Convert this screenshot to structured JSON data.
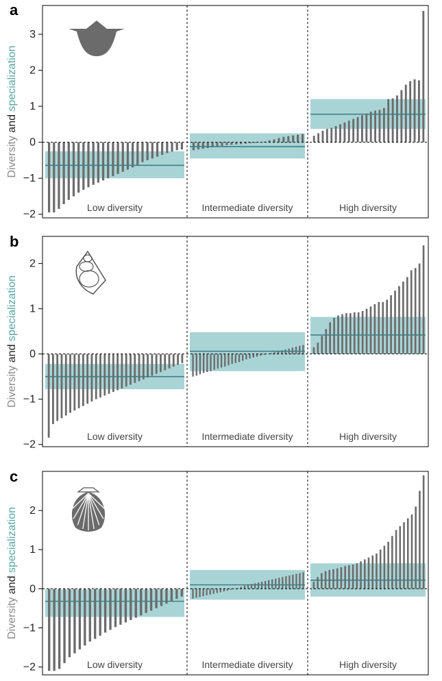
{
  "colors": {
    "bar": "#6b6b6b",
    "band": "#a9d4d6",
    "median": "#3f7f83",
    "axis": "#000000",
    "ylabel_diversity": "#8a8a8a",
    "ylabel_specialization": "#5aa3a5"
  },
  "ylabel": {
    "part1": "Diversity",
    "part2": " and ",
    "part3": "specialization"
  },
  "chart_data": [
    {
      "type": "bar",
      "panel": "a",
      "icon": "brachiopod-shell-icon",
      "ylim": [
        -2.1,
        3.8
      ],
      "yticks": [
        -2,
        -1,
        0,
        1,
        2,
        3
      ],
      "ytick_labels": [
        "−2",
        "−1",
        "0",
        "1",
        "2",
        "3"
      ],
      "groups": [
        {
          "label": "Low diversity",
          "values": [
            -1.95,
            -1.95,
            -1.85,
            -1.72,
            -1.6,
            -1.5,
            -1.4,
            -1.32,
            -1.25,
            -1.18,
            -1.12,
            -1.06,
            -1.0,
            -0.94,
            -0.88,
            -0.82,
            -0.76,
            -0.7,
            -0.63,
            -0.55,
            -0.5,
            -0.45,
            -0.4,
            -0.35,
            -0.3,
            -0.26,
            -0.22,
            -0.2
          ],
          "band": [
            -1.0,
            -0.25
          ],
          "median": -0.64
        },
        {
          "label": "Intermediate diversity",
          "values": [
            -0.22,
            -0.2,
            -0.18,
            -0.16,
            -0.14,
            -0.12,
            -0.1,
            -0.08,
            -0.07,
            -0.06,
            -0.05,
            -0.04,
            -0.03,
            -0.02,
            -0.01,
            0.02,
            0.05,
            0.08,
            0.12,
            0.15,
            0.17,
            0.19,
            0.21,
            0.23
          ],
          "band": [
            -0.45,
            0.25
          ],
          "median": -0.12
        },
        {
          "label": "High diversity",
          "values": [
            0.18,
            0.25,
            0.32,
            0.37,
            0.4,
            0.45,
            0.5,
            0.55,
            0.6,
            0.65,
            0.7,
            0.75,
            0.8,
            0.85,
            0.88,
            0.9,
            0.95,
            1.2,
            1.22,
            1.3,
            1.45,
            1.6,
            1.7,
            1.75,
            1.72,
            3.65
          ],
          "band": [
            0.37,
            1.2
          ],
          "median": 0.78
        }
      ]
    },
    {
      "type": "bar",
      "panel": "b",
      "icon": "gastropod-shell-icon",
      "ylim": [
        -2.05,
        2.6
      ],
      "yticks": [
        -2,
        -1,
        0,
        1,
        2
      ],
      "ytick_labels": [
        "−2",
        "−1",
        "0",
        "1",
        "2"
      ],
      "groups": [
        {
          "label": "Low diversity",
          "values": [
            -1.85,
            -1.55,
            -1.48,
            -1.42,
            -1.36,
            -1.3,
            -1.25,
            -1.2,
            -1.15,
            -1.1,
            -1.05,
            -1.0,
            -0.96,
            -0.92,
            -0.88,
            -0.84,
            -0.8,
            -0.76,
            -0.72,
            -0.68,
            -0.64,
            -0.6,
            -0.56,
            -0.52,
            -0.48,
            -0.44,
            -0.4,
            -0.36,
            -0.32,
            -0.28,
            -0.24,
            -0.2
          ],
          "band": [
            -0.78,
            -0.22
          ],
          "median": -0.5
        },
        {
          "label": "Intermediate diversity",
          "values": [
            -0.5,
            -0.48,
            -0.45,
            -0.42,
            -0.4,
            -0.38,
            -0.35,
            -0.32,
            -0.3,
            -0.28,
            -0.25,
            -0.22,
            -0.2,
            -0.18,
            -0.15,
            -0.12,
            -0.1,
            -0.08,
            -0.06,
            -0.04,
            -0.02,
            0.0,
            0.02,
            0.04,
            0.06,
            0.08,
            0.1,
            0.12,
            0.14,
            0.16,
            0.18,
            0.2
          ],
          "band": [
            -0.38,
            0.48
          ],
          "median": 0.06
        },
        {
          "label": "High diversity",
          "values": [
            0.15,
            0.25,
            0.4,
            0.55,
            0.7,
            0.8,
            0.85,
            0.88,
            0.9,
            0.9,
            0.92,
            0.92,
            0.95,
            1.0,
            1.05,
            1.1,
            1.15,
            1.15,
            1.2,
            1.3,
            1.4,
            1.5,
            1.6,
            1.7,
            1.85,
            1.9,
            2.0,
            2.4
          ],
          "band": [
            0.0,
            0.82
          ],
          "median": 0.42
        }
      ]
    },
    {
      "type": "bar",
      "panel": "c",
      "icon": "scallop-shell-icon",
      "ylim": [
        -2.2,
        3.0
      ],
      "yticks": [
        -2,
        -1,
        0,
        1,
        2
      ],
      "ytick_labels": [
        "−2",
        "−1",
        "0",
        "1",
        "2"
      ],
      "groups": [
        {
          "label": "Low diversity",
          "values": [
            -2.1,
            -2.1,
            -2.05,
            -1.9,
            -1.75,
            -1.65,
            -1.55,
            -1.45,
            -1.35,
            -1.28,
            -1.2,
            -1.12,
            -1.05,
            -0.98,
            -0.92,
            -0.86,
            -0.8,
            -0.74,
            -0.68,
            -0.62,
            -0.56,
            -0.5,
            -0.44,
            -0.38,
            -0.32,
            -0.26,
            -0.2
          ],
          "band": [
            -0.72,
            -0.02
          ],
          "median": -0.32
        },
        {
          "label": "Intermediate diversity",
          "values": [
            -0.25,
            -0.23,
            -0.21,
            -0.19,
            -0.17,
            -0.15,
            -0.13,
            -0.11,
            -0.09,
            -0.07,
            -0.05,
            -0.03,
            -0.01,
            0.02,
            0.05,
            0.08,
            0.1,
            0.12,
            0.14,
            0.16,
            0.18,
            0.2,
            0.22,
            0.24,
            0.26,
            0.28,
            0.3,
            0.32,
            0.34,
            0.36,
            0.38,
            0.4,
            0.42
          ],
          "band": [
            -0.28,
            0.48
          ],
          "median": 0.1
        },
        {
          "label": "High diversity",
          "values": [
            0.18,
            0.3,
            0.4,
            0.45,
            0.48,
            0.5,
            0.52,
            0.55,
            0.58,
            0.6,
            0.62,
            0.65,
            0.7,
            0.75,
            0.8,
            0.85,
            0.9,
            1.0,
            1.1,
            1.2,
            1.35,
            1.5,
            1.6,
            1.7,
            1.8,
            1.9,
            2.1,
            2.5,
            2.9
          ],
          "band": [
            -0.2,
            0.65
          ],
          "median": 0.22
        }
      ]
    }
  ]
}
